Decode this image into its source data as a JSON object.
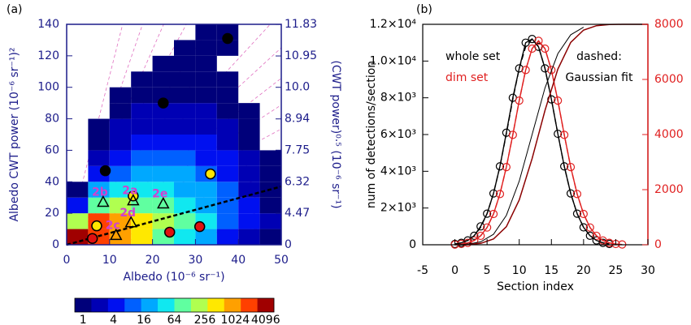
{
  "chart_data": [
    {
      "type": "heatmap",
      "title": "(a)",
      "xlabel": "Albedo  (10⁻⁶ sr⁻¹)",
      "ylabel": "Albedo CWT power (10⁻⁶ sr⁻¹)²",
      "y2label": "(CWT power)⁰·⁵ (10⁻⁶ sr⁻¹)",
      "xlim": [
        0,
        50
      ],
      "xticks": [
        0,
        10,
        20,
        30,
        40,
        50
      ],
      "ylim": [
        0,
        140
      ],
      "yticks": [
        0,
        20,
        40,
        60,
        80,
        100,
        120,
        140
      ],
      "y2lim": [
        0,
        11.83
      ],
      "y2scale": "sqrt",
      "y2ticks": [
        0,
        4.47,
        6.32,
        7.75,
        8.94,
        {
          "value": 10,
          "label": "10.0"
        },
        10.95,
        11.83
      ],
      "axis_color": "#1c1c8a",
      "xbins": [
        0,
        5,
        10,
        15,
        20,
        25,
        30,
        35,
        40,
        45,
        50
      ],
      "ybins": [
        0,
        10,
        20,
        30,
        40,
        50,
        60,
        70,
        80,
        90,
        100,
        110,
        120,
        130,
        140
      ],
      "counts": [
        [
          4096,
          2000,
          800,
          300,
          100,
          40,
          16,
          6,
          2,
          1
        ],
        [
          200,
          1024,
          600,
          256,
          128,
          64,
          32,
          12,
          4,
          2
        ],
        [
          4,
          64,
          128,
          100,
          64,
          40,
          24,
          10,
          4,
          1
        ],
        [
          1,
          16,
          40,
          48,
          40,
          28,
          16,
          8,
          3,
          1
        ],
        [
          null,
          4,
          12,
          20,
          20,
          16,
          10,
          6,
          2,
          1
        ],
        [
          null,
          2,
          6,
          10,
          10,
          10,
          6,
          4,
          2,
          1
        ],
        [
          null,
          1,
          3,
          5,
          6,
          6,
          4,
          3,
          1,
          null
        ],
        [
          null,
          1,
          2,
          3,
          3,
          3,
          3,
          2,
          1,
          null
        ],
        [
          null,
          null,
          1,
          2,
          2,
          2,
          2,
          1,
          1,
          null
        ],
        [
          null,
          null,
          1,
          1,
          1,
          1,
          1,
          1,
          null,
          null
        ],
        [
          null,
          null,
          null,
          1,
          1,
          1,
          1,
          1,
          null,
          null
        ],
        [
          null,
          null,
          null,
          null,
          1,
          1,
          1,
          null,
          null,
          null
        ],
        [
          null,
          null,
          null,
          null,
          null,
          1,
          1,
          1,
          null,
          null
        ],
        [
          null,
          null,
          null,
          null,
          null,
          null,
          1,
          1,
          null,
          null
        ]
      ],
      "colorbar": {
        "lim": [
          1,
          4096
        ],
        "log": true,
        "ticks": [
          1,
          4,
          16,
          64,
          256,
          1024,
          4096
        ],
        "colors": [
          "#00007a",
          "#0000b4",
          "#0010f0",
          "#0060ff",
          "#00a8ff",
          "#10e8f0",
          "#60ffa0",
          "#b0ff50",
          "#ffe800",
          "#ffa000",
          "#ff4000",
          "#a00000"
        ]
      },
      "series": [
        {
          "kind": "line",
          "color": "#000000",
          "dash": true,
          "x": [
            0,
            50
          ],
          "y": [
            0,
            37
          ]
        },
        {
          "kind": "marker",
          "marker": "circle",
          "color": "#000000",
          "x": [
            9,
            22.5,
            37.5
          ],
          "y": [
            47,
            90,
            131
          ]
        },
        {
          "kind": "marker",
          "marker": "circle",
          "color": "#ffe600",
          "x": [
            7,
            15.5,
            33.5
          ],
          "y": [
            12,
            31,
            45
          ]
        },
        {
          "kind": "marker",
          "marker": "circle",
          "color": "#e01010",
          "x": [
            6,
            24,
            31
          ],
          "y": [
            4,
            8,
            11.5
          ]
        },
        {
          "kind": "marker",
          "marker": "triangle",
          "color": "none",
          "label_color": "#d040d0",
          "x": [
            8.5,
            15.5,
            22.5,
            15,
            11.5
          ],
          "y": [
            27,
            28,
            26,
            14,
            6
          ],
          "labels": [
            "2b",
            "2a",
            "2e",
            "2d",
            "2c"
          ]
        }
      ]
    },
    {
      "type": "line",
      "title": "(b)",
      "xlabel": "Section index",
      "ylabel": "num of detections/section",
      "xlim": [
        -5,
        30
      ],
      "xticks": [
        -5,
        0,
        5,
        10,
        15,
        20,
        25,
        30
      ],
      "ylim": [
        0,
        12000
      ],
      "yticks": [
        0,
        {
          "value": 2000,
          "label": "2×10³"
        },
        {
          "value": 4000,
          "label": "4×10³"
        },
        {
          "value": 6000,
          "label": "6×10³"
        },
        {
          "value": 8000,
          "label": "8×10³"
        },
        {
          "value": 10000,
          "label": "1.0×10⁴"
        },
        {
          "value": 12000,
          "label": "1.2×10⁴"
        }
      ],
      "y2lim": [
        0,
        8000
      ],
      "y2ticks": [
        0,
        2000,
        4000,
        6000,
        8000
      ],
      "y2color": "#e02020",
      "annotations": [
        "dashed:",
        "Gaussian fit"
      ],
      "series": [
        {
          "name": "whole set",
          "color": "#000000",
          "markers": true,
          "x": [
            0,
            1,
            2,
            3,
            4,
            5,
            6,
            7,
            8,
            9,
            10,
            11,
            12,
            13,
            14,
            15,
            16,
            17,
            18,
            19,
            20,
            21,
            22,
            23,
            24
          ],
          "values": [
            43,
            105,
            237,
            492,
            1000,
            1692,
            2794,
            4268,
            6100,
            8000,
            9600,
            11000,
            11200,
            10776,
            9600,
            7915,
            6041,
            4268,
            2794,
            1692,
            949,
            492,
            237,
            105,
            43
          ]
        },
        {
          "name": "dim set",
          "color": "#e02020",
          "markers": true,
          "x": [
            0,
            1,
            2,
            3,
            4,
            5,
            6,
            7,
            8,
            9,
            10,
            11,
            12,
            13,
            14,
            15,
            16,
            17,
            18,
            19,
            20,
            21,
            22,
            23,
            24,
            25,
            26
          ],
          "values": [
            10,
            43,
            104,
            234,
            487,
            940,
            1676,
            2764,
            4229,
            5983,
            7848,
            9513,
            10678,
            11100,
            10678,
            9513,
            7848,
            5983,
            4229,
            2764,
            1676,
            940,
            487,
            234,
            104,
            43,
            15
          ]
        },
        {
          "color": "#000000",
          "dash": true,
          "x": [
            0,
            1,
            2,
            3,
            4,
            5,
            6,
            7,
            8,
            9,
            10,
            11,
            12,
            13,
            14,
            15,
            16,
            17,
            18,
            19,
            20,
            21,
            22,
            23,
            24
          ],
          "values": [
            43,
            105,
            237,
            492,
            949,
            1692,
            2794,
            4268,
            6041,
            7915,
            9600,
            10776,
            11200,
            10776,
            9600,
            7915,
            6041,
            4268,
            2794,
            1692,
            949,
            492,
            237,
            105,
            43
          ]
        },
        {
          "color": "#e02020",
          "dash": true,
          "x": [
            1,
            2,
            3,
            4,
            5,
            6,
            7,
            8,
            9,
            10,
            11,
            12,
            13,
            14,
            15,
            16,
            17,
            18,
            19,
            20,
            21,
            22,
            23,
            24,
            25
          ],
          "values": [
            43,
            104,
            234,
            487,
            940,
            1676,
            2764,
            4229,
            5983,
            7848,
            9513,
            10678,
            11100,
            10678,
            9513,
            7848,
            5983,
            4229,
            2764,
            1676,
            940,
            487,
            234,
            104,
            43
          ]
        },
        {
          "color": "#000000",
          "axis": "y2",
          "width": 1,
          "x": [
            0,
            2,
            4,
            6,
            8,
            10,
            12,
            14,
            16,
            18,
            20
          ],
          "values": [
            3,
            22,
            106,
            380,
            1067,
            2310,
            4000,
            5690,
            6933,
            7620,
            7894
          ]
        },
        {
          "color": "#8b0000",
          "axis": "y2",
          "width": 1.5,
          "x": [
            0,
            2,
            4,
            6,
            8,
            10,
            12,
            14,
            16,
            18,
            20,
            22,
            24,
            26,
            28,
            30
          ],
          "values": [
            1,
            9,
            50,
            210,
            657,
            1625,
            3126,
            4874,
            6375,
            7343,
            7790,
            7950,
            7991,
            8000,
            8000,
            8000
          ]
        }
      ]
    }
  ]
}
